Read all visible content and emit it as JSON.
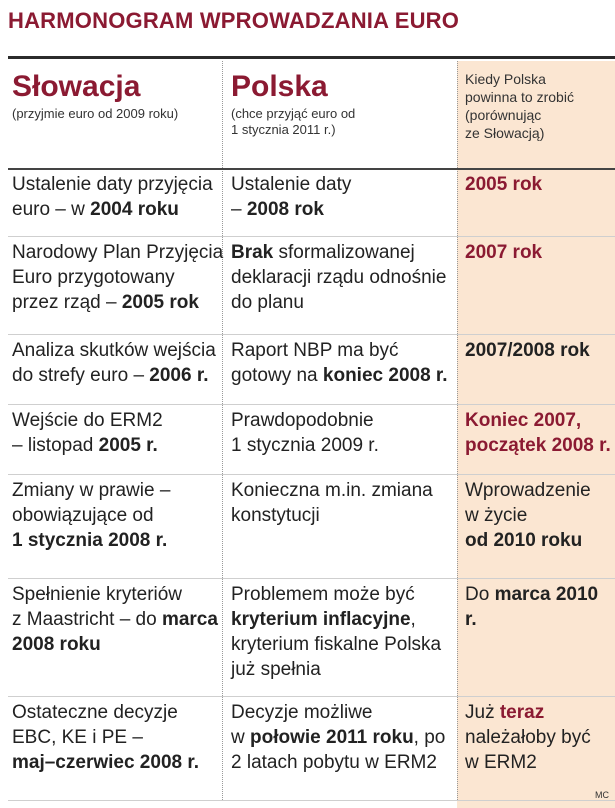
{
  "title": "HARMONOGRAM WPROWADZANIA EURO",
  "columns": [
    {
      "name": "Słowacja",
      "subtitle": "(przyjmie euro od 2009 roku)"
    },
    {
      "name": "Polska",
      "subtitle_line1": "(chce przyjąć euro od",
      "subtitle_line2": "1 stycznia 2011 r.)"
    },
    {
      "text": "Kiedy Polska\npowinna to zrobić\n(porównując\nze Słowacją)"
    }
  ],
  "rows": [
    {
      "slowacja": [
        [
          "Ustalenie daty przyjęcia",
          ""
        ],
        [
          "euro – w ",
          "2004 roku"
        ]
      ],
      "polska": [
        [
          "Ustalenie daty",
          ""
        ],
        [
          "– ",
          "2008 rok"
        ]
      ],
      "kiedy": [
        {
          "text": "2005 rok",
          "style": "red"
        }
      ]
    },
    {
      "slowacja": [
        [
          "Narodowy Plan Przyjęcia",
          ""
        ],
        [
          "Euro przygotowany",
          ""
        ],
        [
          "przez rząd – ",
          "2005 rok"
        ]
      ],
      "polska": [
        [
          "",
          "Brak",
          " sformalizowanej"
        ],
        [
          "deklaracji rządu odnośnie",
          ""
        ],
        [
          "do planu",
          ""
        ]
      ],
      "kiedy": [
        {
          "text": "2007 rok",
          "style": "red"
        }
      ]
    },
    {
      "slowacja": [
        [
          "Analiza skutków wejścia",
          ""
        ],
        [
          "do strefy euro – ",
          "2006 r."
        ]
      ],
      "polska": [
        [
          "Raport NBP ma być",
          ""
        ],
        [
          "gotowy na ",
          "koniec 2008 r."
        ]
      ],
      "kiedy": [
        {
          "text": "2007/2008 rok",
          "style": "bold"
        }
      ]
    },
    {
      "slowacja": [
        [
          "Wejście do ERM2",
          ""
        ],
        [
          "– listopad ",
          "2005 r."
        ]
      ],
      "polska": [
        [
          "Prawdopodobnie",
          ""
        ],
        [
          "1 stycznia 2009 r.",
          ""
        ]
      ],
      "kiedy": [
        {
          "text": "Koniec 2007,",
          "style": "red"
        },
        {
          "text": "początek 2008 r.",
          "style": "red"
        }
      ]
    },
    {
      "slowacja": [
        [
          "Zmiany w prawie  –",
          ""
        ],
        [
          "obowiązujące od",
          ""
        ],
        [
          "",
          "1 stycznia 2008 r."
        ]
      ],
      "polska": [
        [
          "Konieczna m.in. zmiana",
          ""
        ],
        [
          "konstytucji",
          ""
        ]
      ],
      "kiedy": [
        {
          "text": "Wprowadzenie",
          "style": "normal"
        },
        {
          "text": "w życie",
          "style": "normal"
        },
        {
          "text": "od 2010 roku",
          "style": "bold"
        }
      ]
    },
    {
      "slowacja": [
        [
          "Spełnienie kryteriów",
          ""
        ],
        [
          "z Maastricht – do ",
          "marca"
        ],
        [
          "",
          "2008 roku"
        ]
      ],
      "polska": [
        [
          "Problemem może być",
          ""
        ],
        [
          "",
          "kryterium inflacyjne",
          ","
        ],
        [
          "kryterium fiskalne Polska",
          ""
        ],
        [
          "już spełnia",
          ""
        ]
      ],
      "kiedy": [
        {
          "pre": "Do ",
          "bold": "marca 2010 r."
        }
      ]
    },
    {
      "slowacja": [
        [
          "Ostateczne decyzje",
          ""
        ],
        [
          "EBC, KE i PE –",
          ""
        ],
        [
          "",
          "maj–czerwiec 2008 r."
        ]
      ],
      "polska": [
        [
          "Decyzje możliwe",
          ""
        ],
        [
          "w ",
          "połowie 2011 roku",
          ", po"
        ],
        [
          "2 latach pobytu w ERM2",
          ""
        ]
      ],
      "kiedy": [
        {
          "pre": "Już ",
          "red": "teraz"
        },
        {
          "text": "należałoby być",
          "style": "normal"
        },
        {
          "text": "w ERM2",
          "style": "normal"
        }
      ]
    }
  ],
  "credit": "MC",
  "colors": {
    "accent": "#8b1a32",
    "highlight_column": "#fbe6d2"
  }
}
